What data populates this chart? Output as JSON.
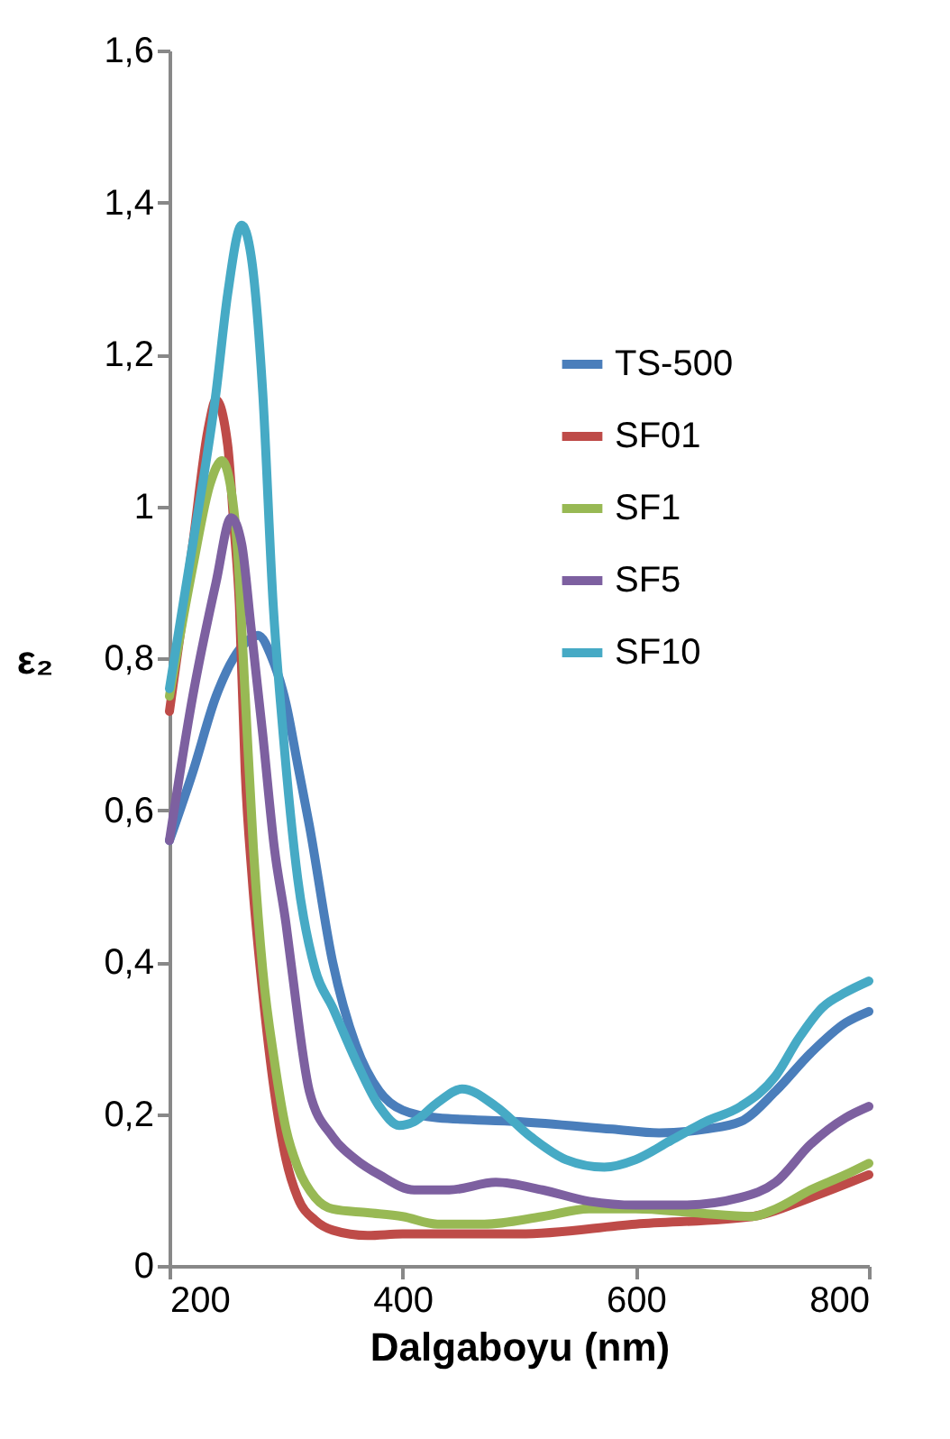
{
  "chart_data": {
    "type": "line",
    "xlabel": "Dalgaboyu (nm)",
    "ylabel": "ε₂",
    "xlim": [
      200,
      800
    ],
    "xticks": [
      200,
      400,
      600,
      800
    ],
    "ylim": [
      0,
      1.6
    ],
    "yticks": [
      0,
      {
        "value": 0.2,
        "label": "0,2"
      },
      {
        "value": 0.4,
        "label": "0,4"
      },
      {
        "value": 0.6,
        "label": "0,6"
      },
      {
        "value": 0.8,
        "label": "0,8"
      },
      1,
      {
        "value": 1.2,
        "label": "1,2"
      },
      {
        "value": 1.4,
        "label": "1,4"
      },
      {
        "value": 1.6,
        "label": "1,6"
      }
    ],
    "grid": false,
    "legend": "right",
    "marker": "none",
    "line_style": "solid",
    "series": [
      {
        "name": "TS-500",
        "color": "#4a7ebb",
        "x": [
          200,
          220,
          240,
          255,
          265,
          276,
          288,
          300,
          310,
          320,
          340,
          360,
          380,
          400,
          430,
          500,
          580,
          620,
          660,
          690,
          720,
          750,
          780,
          800
        ],
        "values": [
          0.56,
          0.65,
          0.75,
          0.8,
          0.82,
          0.83,
          0.8,
          0.74,
          0.66,
          0.58,
          0.4,
          0.29,
          0.23,
          0.205,
          0.195,
          0.19,
          0.18,
          0.175,
          0.18,
          0.19,
          0.23,
          0.28,
          0.32,
          0.335
        ]
      },
      {
        "name": "SF01",
        "color": "#be4b48",
        "x": [
          200,
          220,
          233,
          240,
          250,
          255,
          260,
          265,
          271,
          280,
          290,
          300,
          310,
          325,
          340,
          370,
          400,
          500,
          600,
          700,
          750,
          800
        ],
        "values": [
          0.73,
          0.95,
          1.1,
          1.14,
          1.08,
          0.98,
          0.87,
          0.65,
          0.51,
          0.36,
          0.23,
          0.14,
          0.09,
          0.06,
          0.047,
          0.04,
          0.042,
          0.042,
          0.055,
          0.065,
          0.09,
          0.12
        ]
      },
      {
        "name": "SF1",
        "color": "#98b954",
        "x": [
          200,
          220,
          235,
          245,
          252,
          258,
          265,
          272,
          280,
          290,
          300,
          310,
          325,
          340,
          370,
          400,
          430,
          470,
          520,
          560,
          600,
          650,
          700,
          720,
          750,
          780,
          800
        ],
        "values": [
          0.75,
          0.92,
          1.03,
          1.06,
          1.03,
          0.95,
          0.75,
          0.55,
          0.39,
          0.27,
          0.18,
          0.13,
          0.09,
          0.075,
          0.07,
          0.065,
          0.055,
          0.055,
          0.065,
          0.075,
          0.075,
          0.07,
          0.065,
          0.075,
          0.1,
          0.12,
          0.135
        ]
      },
      {
        "name": "SF5",
        "color": "#7d60a0",
        "x": [
          200,
          220,
          240,
          253,
          262,
          270,
          280,
          290,
          300,
          305,
          320,
          340,
          360,
          380,
          410,
          440,
          480,
          520,
          560,
          600,
          640,
          690,
          720,
          750,
          780,
          800
        ],
        "values": [
          0.56,
          0.75,
          0.9,
          0.985,
          0.95,
          0.84,
          0.7,
          0.55,
          0.45,
          0.39,
          0.23,
          0.17,
          0.14,
          0.12,
          0.1,
          0.1,
          0.11,
          0.1,
          0.085,
          0.08,
          0.08,
          0.09,
          0.11,
          0.16,
          0.195,
          0.21
        ]
      },
      {
        "name": "SF10",
        "color": "#46aac5",
        "x": [
          200,
          220,
          240,
          250,
          262,
          270,
          280,
          289,
          297,
          310,
          325,
          340,
          360,
          380,
          397,
          410,
          430,
          451,
          480,
          510,
          540,
          573,
          600,
          630,
          660,
          690,
          720,
          740,
          760,
          780,
          800
        ],
        "values": [
          0.76,
          0.95,
          1.15,
          1.28,
          1.37,
          1.33,
          1.15,
          0.87,
          0.71,
          0.51,
          0.39,
          0.34,
          0.27,
          0.21,
          0.185,
          0.19,
          0.215,
          0.233,
          0.21,
          0.17,
          0.14,
          0.13,
          0.14,
          0.165,
          0.19,
          0.21,
          0.25,
          0.3,
          0.34,
          0.36,
          0.375
        ]
      }
    ]
  }
}
